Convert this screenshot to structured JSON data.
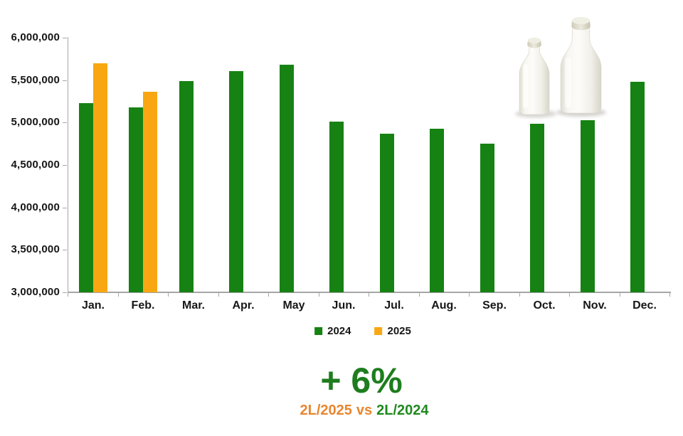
{
  "chart_data": {
    "type": "bar",
    "title": "",
    "xlabel": "",
    "ylabel": "",
    "categories": [
      "Jan.",
      "Feb.",
      "Mar.",
      "Apr.",
      "May",
      "Jun.",
      "Jul.",
      "Aug.",
      "Sep.",
      "Oct.",
      "Nov.",
      "Dec."
    ],
    "series": [
      {
        "name": "2024",
        "color": "#168213",
        "values": [
          5230000,
          5180000,
          5490000,
          5610000,
          5680000,
          5010000,
          4870000,
          4930000,
          4750000,
          4990000,
          5030000,
          5480000
        ]
      },
      {
        "name": "2025",
        "color": "#F8A712",
        "values": [
          5700000,
          5360000,
          null,
          null,
          null,
          null,
          null,
          null,
          null,
          null,
          null,
          null
        ]
      }
    ],
    "ylim": [
      3000000,
      6000000
    ],
    "y_tick_step": 500000,
    "y_tick_labels": [
      "3,000,000",
      "3,500,000",
      "4,000,000",
      "4,500,000",
      "5,000,000",
      "5,500,000",
      "6,000,000"
    ],
    "grid": false,
    "legend_position": "bottom"
  },
  "legend": {
    "items": [
      {
        "label": "2024",
        "color": "#168213"
      },
      {
        "label": "2025",
        "color": "#F8A712"
      }
    ]
  },
  "annotation": {
    "growth": "+ 6%",
    "growth_color": "#1e7d1e",
    "comparison_left": "2L/2025",
    "comparison_vs": "vs",
    "comparison_right": "2L/2024",
    "orange_text_color": "#e8862f",
    "green_text_color": "#1f8a1f"
  },
  "decoration": {
    "icon": "milk-bottles-icon"
  }
}
